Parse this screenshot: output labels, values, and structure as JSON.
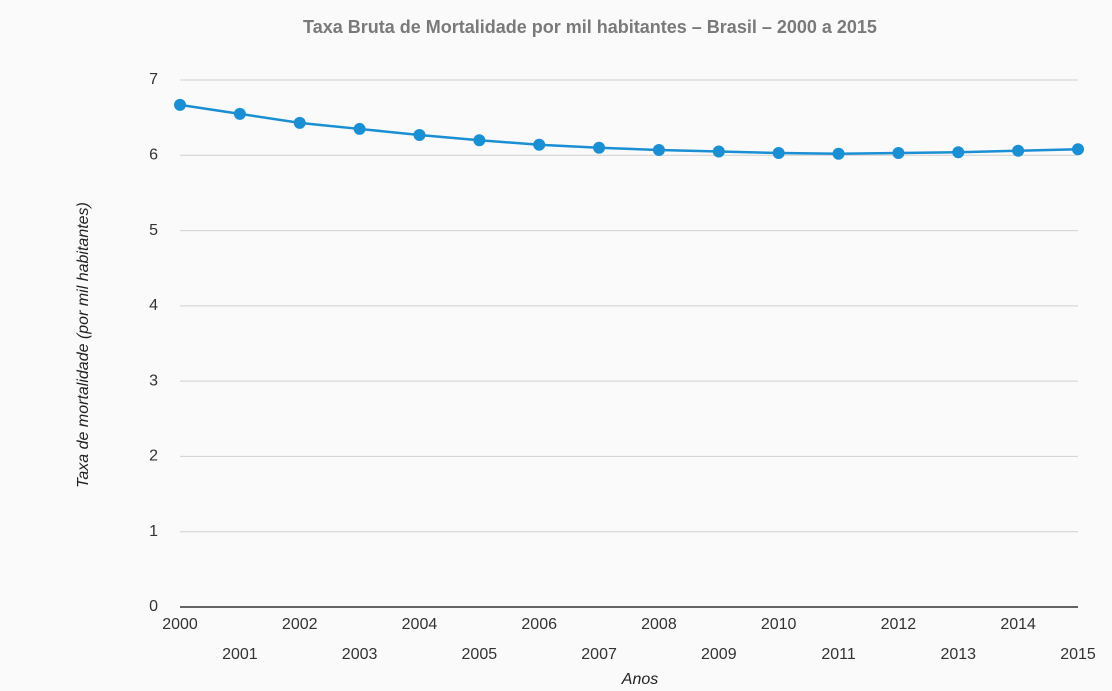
{
  "chart_data": {
    "type": "line",
    "title": "Taxa Bruta de Mortalidade por mil habitantes – Brasil – 2000 a 2015",
    "x_label": "Anos",
    "y_label": "Taxa de mortalidade (por mil habitantes)",
    "categories": [
      "2000",
      "2001",
      "2002",
      "2003",
      "2004",
      "2005",
      "2006",
      "2007",
      "2008",
      "2009",
      "2010",
      "2011",
      "2012",
      "2013",
      "2014",
      "2015"
    ],
    "series": [
      {
        "name": "Taxa de mortalidade",
        "color": "#1a8fd3",
        "values": [
          6.67,
          6.55,
          6.43,
          6.35,
          6.27,
          6.2,
          6.14,
          6.1,
          6.07,
          6.05,
          6.03,
          6.02,
          6.03,
          6.04,
          6.06,
          6.08
        ]
      }
    ],
    "ylim": [
      0,
      7
    ],
    "yticks": [
      0,
      1,
      2,
      3,
      4,
      5,
      6,
      7
    ],
    "grid": true
  }
}
